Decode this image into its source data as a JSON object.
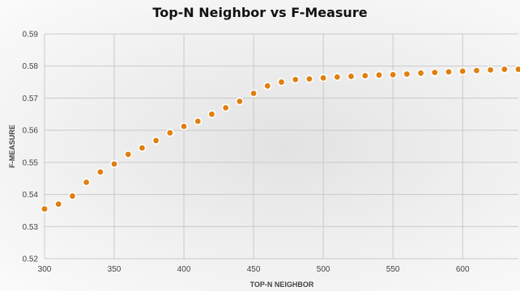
{
  "chart_data": {
    "type": "scatter",
    "title": "Top-N Neighbor vs F-Measure",
    "xlabel": "TOP-N NEIGHBOR",
    "ylabel": "F-MEASURE",
    "xlim": [
      300,
      640
    ],
    "ylim": [
      0.52,
      0.59
    ],
    "x_ticks": [
      300,
      350,
      400,
      450,
      500,
      550,
      600
    ],
    "y_ticks": [
      0.52,
      0.53,
      0.54,
      0.55,
      0.56,
      0.57,
      0.58,
      0.59
    ],
    "grid": true,
    "marker_color": "#e07f10",
    "series": [
      {
        "x": [
          300,
          310,
          320,
          330,
          340,
          350,
          360,
          370,
          380,
          390,
          400,
          410,
          420,
          430,
          440,
          450,
          460,
          470,
          480,
          490,
          500,
          510,
          520,
          530,
          540,
          550,
          560,
          570,
          580,
          590,
          600,
          610,
          620,
          630,
          640
        ],
        "y": [
          0.5355,
          0.537,
          0.5395,
          0.5438,
          0.547,
          0.5495,
          0.5525,
          0.5545,
          0.5568,
          0.5592,
          0.5612,
          0.5628,
          0.565,
          0.567,
          0.569,
          0.5715,
          0.5738,
          0.575,
          0.5758,
          0.576,
          0.5763,
          0.5766,
          0.5768,
          0.577,
          0.5772,
          0.5773,
          0.5775,
          0.5778,
          0.578,
          0.5782,
          0.5784,
          0.5786,
          0.5788,
          0.579,
          0.579
        ]
      }
    ]
  }
}
